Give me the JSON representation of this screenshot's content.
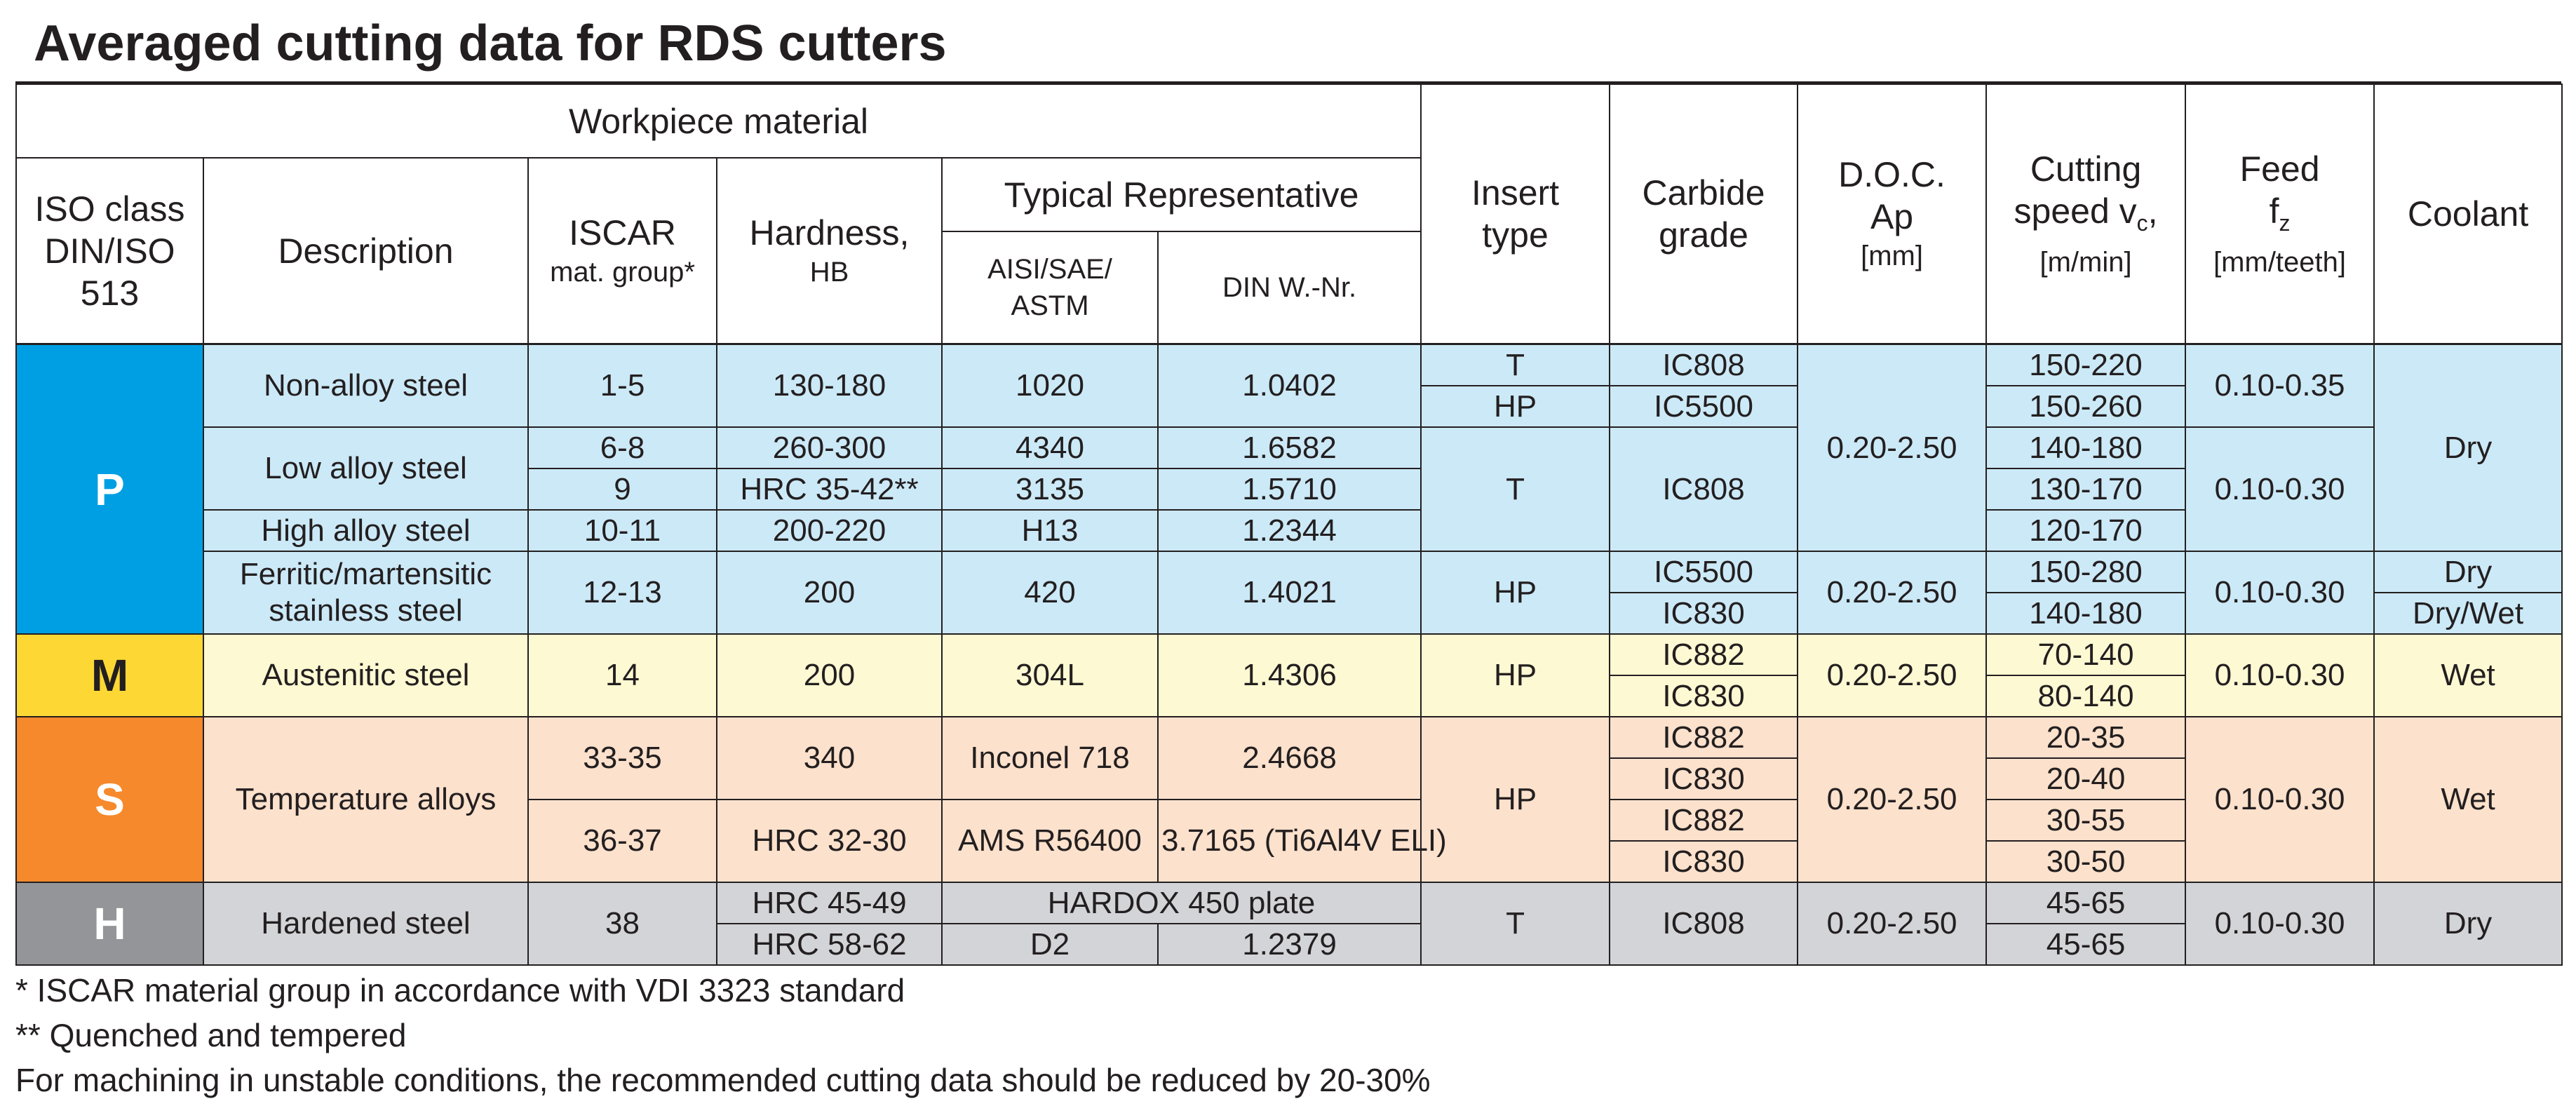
{
  "title": "Averaged cutting data for RDS cutters",
  "headers": {
    "workpiece_material": "Workpiece material",
    "iso_class": [
      "ISO class",
      "DIN/ISO",
      "513"
    ],
    "description": "Description",
    "iscar": "ISCAR",
    "iscar_sub": "mat. group*",
    "hardness": "Hardness,",
    "hardness_sub": "HB",
    "typical_representative": "Typical Representative",
    "aisi": "AISI/SAE/ ASTM",
    "din": "DIN W.-Nr.",
    "insert_type": [
      "Insert",
      "type"
    ],
    "carbide_grade": [
      "Carbide",
      "grade"
    ],
    "doc": [
      "D.O.C.",
      "Ap"
    ],
    "doc_unit": "[mm]",
    "cutting_speed": "Cutting",
    "cutting_speed_line2": "speed v",
    "cutting_speed_sub": "c",
    "cutting_speed_comma": ",",
    "cutting_speed_unit": "[m/min]",
    "feed": "Feed",
    "feed_symbol": "f",
    "feed_sub": "z",
    "feed_unit": "[mm/teeth]",
    "coolant": "Coolant"
  },
  "iso": {
    "p": "P",
    "m": "M",
    "s": "S",
    "h": "H"
  },
  "rows": {
    "p1": {
      "desc": "Non-alloy steel",
      "group": "1-5",
      "hardness": "130-180",
      "aisi": "1020",
      "din": "1.0402",
      "insert_a": "T",
      "insert_b": "HP",
      "grade_a": "IC808",
      "grade_b": "IC5500",
      "speed_a": "150-220",
      "speed_b": "150-260",
      "feed": "0.10-0.35"
    },
    "p2": {
      "desc": "Low alloy steel",
      "group_a": "6-8",
      "group_b": "9",
      "hardness_a": "260-300",
      "hardness_b": "HRC 35-42**",
      "aisi_a": "4340",
      "aisi_b": "3135",
      "din_a": "1.6582",
      "din_b": "1.5710",
      "speed_a": "140-180",
      "speed_b": "130-170"
    },
    "p3": {
      "desc": "High alloy steel",
      "group": "10-11",
      "hardness": "200-220",
      "aisi": "H13",
      "din": "1.2344",
      "speed": "120-170"
    },
    "p_shared": {
      "insert": "T",
      "grade": "IC808",
      "doc": "0.20-2.50",
      "feed": "0.10-0.30",
      "coolant": "Dry"
    },
    "p4": {
      "desc": "Ferritic/martensitic stainless steel",
      "group": "12-13",
      "hardness": "200",
      "aisi": "420",
      "din": "1.4021",
      "insert": "HP",
      "grade_a": "IC5500",
      "grade_b": "IC830",
      "doc": "0.20-2.50",
      "speed_a": "150-280",
      "speed_b": "140-180",
      "feed": "0.10-0.30",
      "coolant_a": "Dry",
      "coolant_b": "Dry/Wet"
    },
    "m1": {
      "desc": "Austenitic steel",
      "group": "14",
      "hardness": "200",
      "aisi": "304L",
      "din": "1.4306",
      "insert": "HP",
      "grade_a": "IC882",
      "grade_b": "IC830",
      "doc": "0.20-2.50",
      "speed_a": "70-140",
      "speed_b": "80-140",
      "feed": "0.10-0.30",
      "coolant": "Wet"
    },
    "s1": {
      "desc": "Temperature alloys",
      "group_a": "33-35",
      "group_b": "36-37",
      "hardness_a": "340",
      "hardness_b": "HRC 32-30",
      "aisi_a": "Inconel 718",
      "aisi_b": "AMS R56400",
      "din_a": "2.4668",
      "din_b": "3.7165 (Ti6Al4V ELI)",
      "insert": "HP",
      "grade_1": "IC882",
      "grade_2": "IC830",
      "grade_3": "IC882",
      "grade_4": "IC830",
      "doc": "0.20-2.50",
      "speed_1": "20-35",
      "speed_2": "20-40",
      "speed_3": "30-55",
      "speed_4": "30-50",
      "feed": "0.10-0.30",
      "coolant": "Wet"
    },
    "h1": {
      "desc": "Hardened steel",
      "group": "38",
      "hardness_a": "HRC 45-49",
      "hardness_b": "HRC 58-62",
      "rep_a": "HARDOX 450 plate",
      "aisi_b": "D2",
      "din_b": "1.2379",
      "insert": "T",
      "grade": "IC808",
      "doc": "0.20-2.50",
      "speed_a": "45-65",
      "speed_b": "45-65",
      "feed": "0.10-0.30",
      "coolant": "Dry"
    }
  },
  "notes": [
    "* ISCAR material group in accordance with VDI 3323 standard",
    "** Quenched and tempered",
    "For machining in unstable conditions, the recommended cutting data should be reduced by 20-30%"
  ],
  "colors": {
    "p": "#009fe3",
    "p_row": "#cce9f7",
    "m": "#fdd835",
    "m_row": "#fdf9d3",
    "s": "#f6892b",
    "s_row": "#fce1cc",
    "h": "#939598",
    "h_row": "#d3d4d8"
  }
}
